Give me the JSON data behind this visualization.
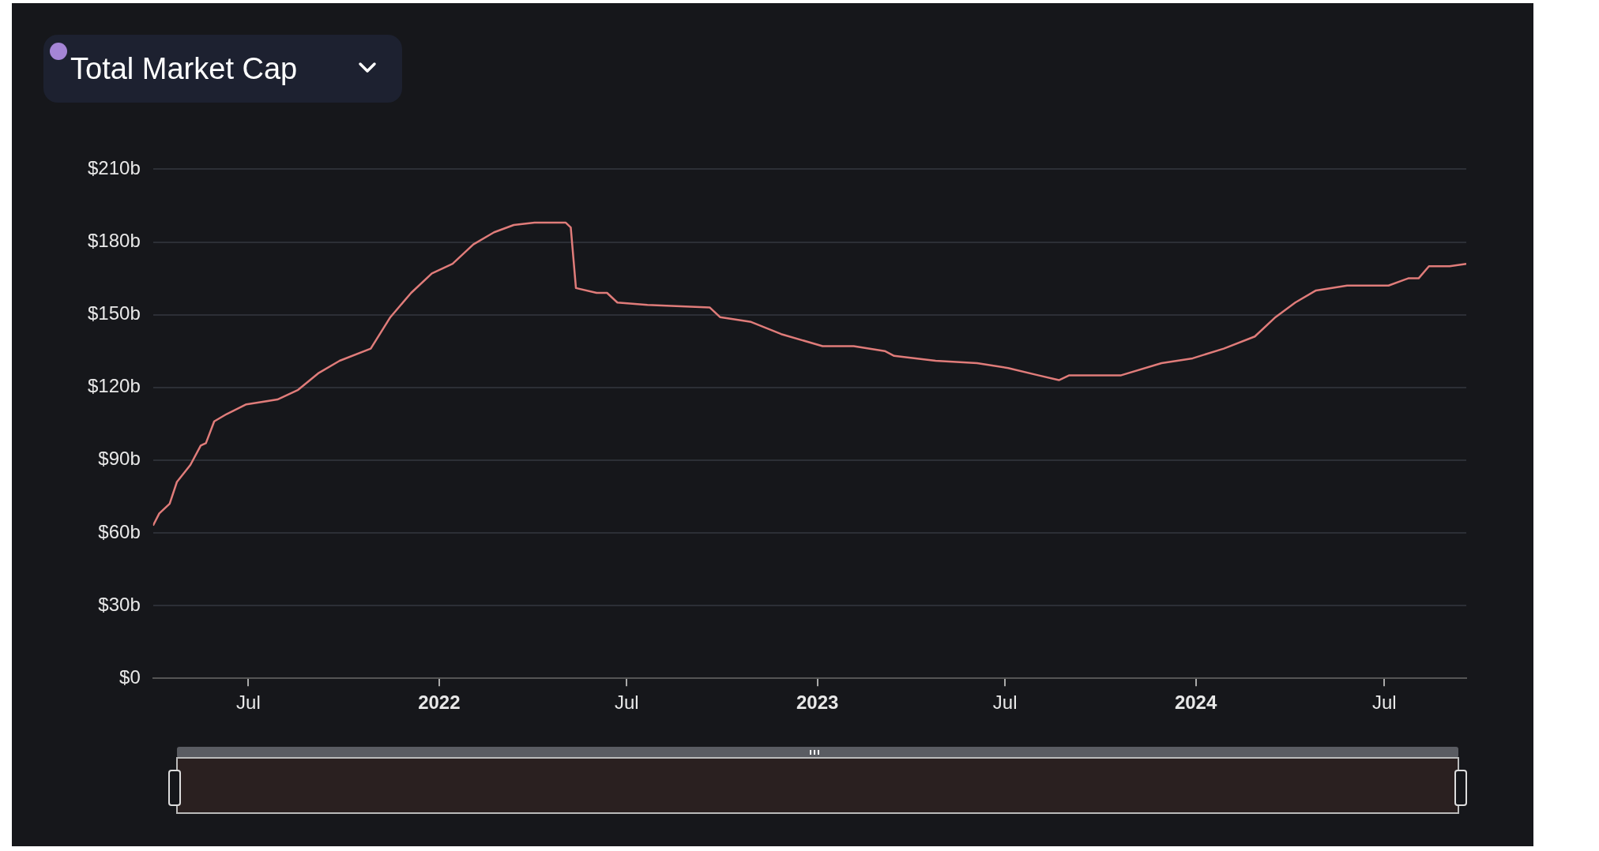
{
  "chart_data": {
    "type": "line",
    "title": "Total Market Cap",
    "x": [
      "2021-03-31",
      "2021-04-06",
      "2021-04-16",
      "2021-04-23",
      "2021-05-06",
      "2021-05-16",
      "2021-05-21",
      "2021-05-29",
      "2021-06-10",
      "2021-06-29",
      "2021-07-29",
      "2021-08-18",
      "2021-09-07",
      "2021-09-27",
      "2021-10-27",
      "2021-11-15",
      "2021-12-05",
      "2021-12-25",
      "2022-01-14",
      "2022-02-03",
      "2022-02-23",
      "2022-03-14",
      "2022-04-03",
      "2022-05-03",
      "2022-05-08",
      "2022-05-13",
      "2022-06-02",
      "2022-06-12",
      "2022-06-22",
      "2022-07-21",
      "2022-09-19",
      "2022-09-29",
      "2022-10-29",
      "2022-11-27",
      "2023-01-06",
      "2023-02-05",
      "2023-03-07",
      "2023-03-16",
      "2023-04-25",
      "2023-06-04",
      "2023-07-04",
      "2023-08-02",
      "2023-08-22",
      "2023-09-01",
      "2023-10-21",
      "2023-11-29",
      "2023-12-29",
      "2024-01-28",
      "2024-02-27",
      "2024-03-18",
      "2024-04-06",
      "2024-04-26",
      "2024-05-26",
      "2024-07-05",
      "2024-07-24",
      "2024-08-03",
      "2024-08-13",
      "2024-09-02",
      "2024-09-18"
    ],
    "series": [
      {
        "color": "#e07c7a",
        "values": [
          63,
          68,
          72,
          81,
          88,
          96,
          97,
          106,
          109,
          113,
          115,
          119,
          126,
          131,
          136,
          149,
          159,
          167,
          171,
          179,
          184,
          187,
          188,
          188,
          186,
          161,
          159,
          159,
          155,
          154,
          153,
          149,
          147,
          142,
          137,
          137,
          135,
          133,
          131,
          130,
          128,
          125,
          123,
          125,
          125,
          130,
          132,
          136,
          141,
          149,
          155,
          160,
          162,
          162,
          165,
          165,
          170,
          170,
          171
        ]
      }
    ],
    "xlim": [
      "2021-03-31",
      "2024-09-18"
    ],
    "xticks": [
      {
        "value": "2021-07-01",
        "label": "Jul"
      },
      {
        "value": "2022-01-01",
        "label": "2022"
      },
      {
        "value": "2022-07-01",
        "label": "Jul"
      },
      {
        "value": "2023-01-01",
        "label": "2023"
      },
      {
        "value": "2023-07-01",
        "label": "Jul"
      },
      {
        "value": "2024-01-01",
        "label": "2024"
      },
      {
        "value": "2024-07-01",
        "label": "Jul"
      }
    ],
    "ylim": [
      0,
      210
    ],
    "yticks": [
      {
        "value": 0,
        "label": "$0"
      },
      {
        "value": 30,
        "label": "$30b"
      },
      {
        "value": 60,
        "label": "$60b"
      },
      {
        "value": 90,
        "label": "$90b"
      },
      {
        "value": 120,
        "label": "$120b"
      },
      {
        "value": 150,
        "label": "$150b"
      },
      {
        "value": 180,
        "label": "$180b"
      },
      {
        "value": 210,
        "label": "$210b"
      }
    ],
    "grid": "y",
    "legend": false,
    "marker": "none",
    "line_style": "solid"
  }
}
